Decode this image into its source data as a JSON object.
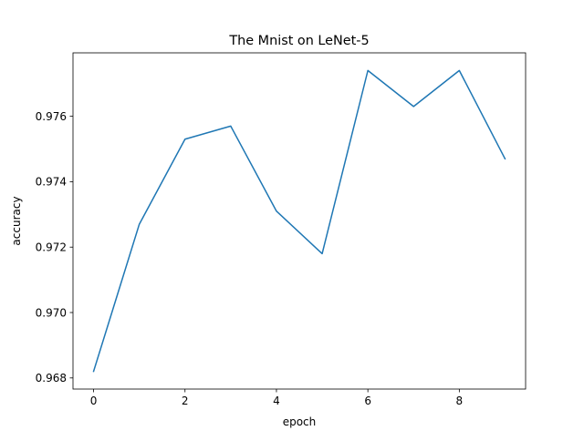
{
  "chart_data": {
    "type": "line",
    "title": "The Mnist on LeNet-5",
    "xlabel": "epoch",
    "ylabel": "accuracy",
    "x": [
      0,
      1,
      2,
      3,
      4,
      5,
      6,
      7,
      8,
      9
    ],
    "series": [
      {
        "values": [
          0.9682,
          0.9727,
          0.9753,
          0.9757,
          0.9731,
          0.9718,
          0.9774,
          0.9763,
          0.9774,
          0.9747
        ],
        "color": "#1f77b4"
      }
    ],
    "xlim": [
      -0.45,
      9.45
    ],
    "ylim": [
      0.96766,
      0.97794
    ],
    "xticks": [
      0,
      2,
      4,
      6,
      8
    ],
    "xtick_labels": [
      "0",
      "2",
      "4",
      "6",
      "8"
    ],
    "yticks": [
      0.968,
      0.97,
      0.972,
      0.974,
      0.976
    ],
    "ytick_labels": [
      "0.968",
      "0.970",
      "0.972",
      "0.974",
      "0.976"
    ],
    "grid": false,
    "legend": "none"
  }
}
